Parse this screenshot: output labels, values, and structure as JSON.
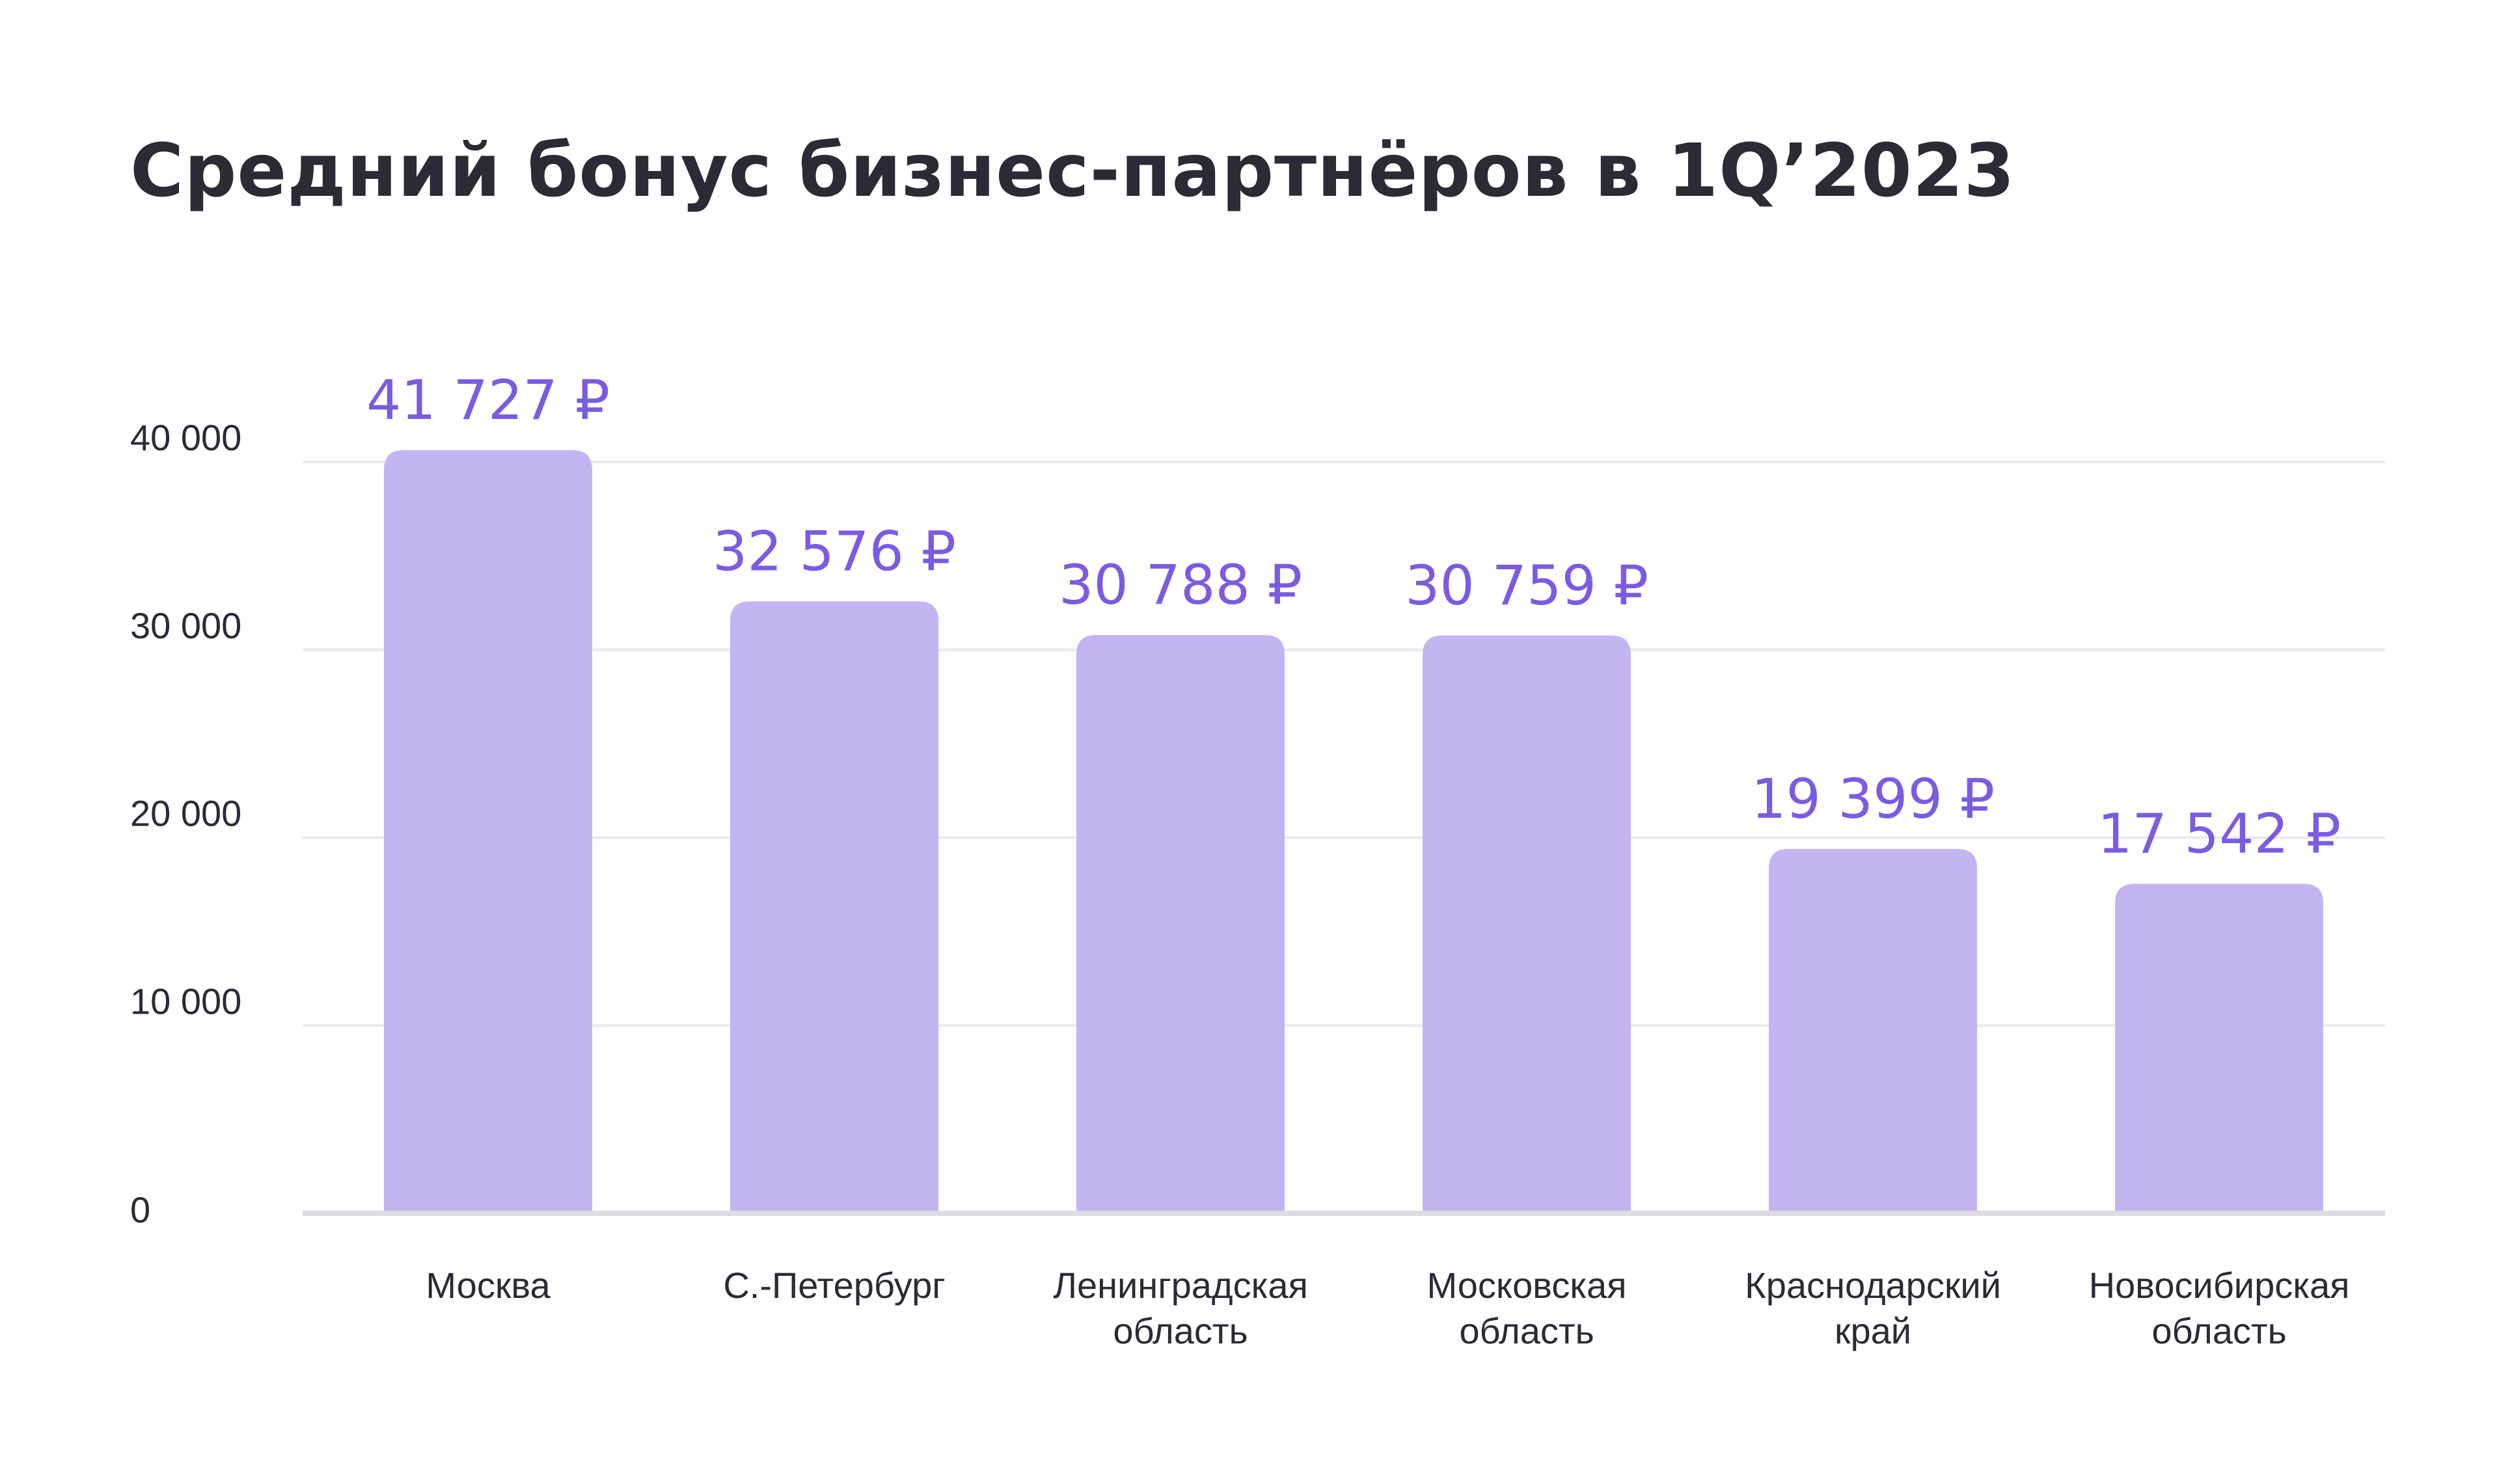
{
  "chart_data": {
    "type": "bar",
    "title": "Средний бонус бизнес-партнёров в 1Q’2023",
    "xlabel": "",
    "ylabel": "",
    "categories": [
      [
        "Москва"
      ],
      [
        "С.-Петербург"
      ],
      [
        "Ленинградская",
        "область"
      ],
      [
        "Московская",
        "область"
      ],
      [
        "Краснодарский",
        "край"
      ],
      [
        "Новосибирская",
        "область"
      ]
    ],
    "values": [
      41727,
      32576,
      30788,
      30759,
      19399,
      17542
    ],
    "value_labels": [
      "41 727 ₽",
      "32 576 ₽",
      "30 788 ₽",
      "30 759 ₽",
      "19 399 ₽",
      "17 542 ₽"
    ],
    "y_ticks": [
      {
        "value": 0,
        "label": "0"
      },
      {
        "value": 10000,
        "label": "10 000"
      },
      {
        "value": 20000,
        "label": "20 000"
      },
      {
        "value": 30000,
        "label": "30 000"
      },
      {
        "value": 40000,
        "label": "40 000"
      }
    ],
    "ylim": [
      0,
      44000
    ],
    "grid": true,
    "legend": "none",
    "bar_color": "#c4b5f2",
    "value_label_color": "#7b5ce0",
    "text_color": "#2b2a35",
    "grid_color": "#e9e9ef"
  }
}
